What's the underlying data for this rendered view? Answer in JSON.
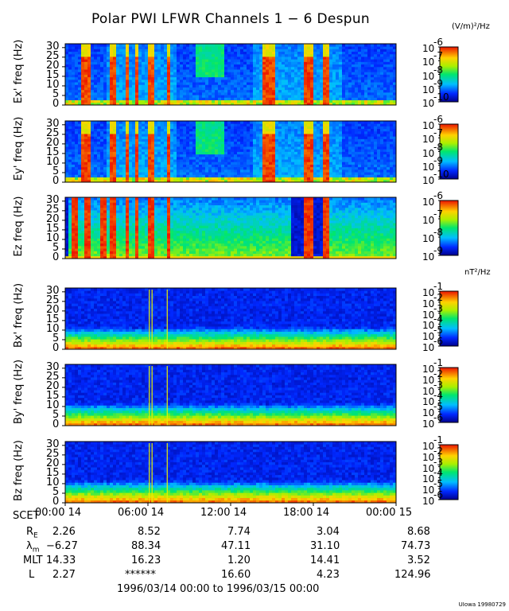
{
  "chart_data": {
    "type": "heatmap",
    "title": "Polar PWI LFWR Channels 1 − 6 Despun",
    "e_units": "(V/m)²/Hz",
    "b_units": "nT²/Hz",
    "time_range": "1996/03/14 00:00 to 1996/03/15 00:00",
    "credit": "UIowa 19980729",
    "y_ticks": [
      "0",
      "5",
      "10",
      "15",
      "20",
      "25",
      "30"
    ],
    "ylim": [
      0,
      32
    ],
    "x_ticks": [
      "00:00 14",
      "06:00 14",
      "12:00 14",
      "18:00 14",
      "00:00 15"
    ],
    "xlim_hours": [
      0,
      24
    ],
    "panels": [
      {
        "ylabel": "Ex' freq (Hz)",
        "kind": "E",
        "colorbar": {
          "top": "-6",
          "labels": [
            "-7",
            "-8",
            "-9",
            "-10"
          ]
        }
      },
      {
        "ylabel": "Ey' freq (Hz)",
        "kind": "E",
        "colorbar": {
          "top": "-6",
          "labels": [
            "-7",
            "-8",
            "-9",
            "-10"
          ]
        }
      },
      {
        "ylabel": "Ez freq (Hz)",
        "kind": "Ez",
        "colorbar": {
          "top": "-6",
          "labels": [
            "-7",
            "-8",
            "-9"
          ]
        }
      },
      {
        "ylabel": "Bx' freq (Hz)",
        "kind": "B",
        "colorbar": {
          "top": "-1",
          "labels": [
            "-2",
            "-3",
            "-4",
            "-5",
            "-6"
          ]
        }
      },
      {
        "ylabel": "By' freq (Hz)",
        "kind": "B",
        "colorbar": {
          "top": "-1",
          "labels": [
            "-2",
            "-3",
            "-4",
            "-5",
            "-6"
          ]
        }
      },
      {
        "ylabel": "Bz freq (Hz)",
        "kind": "B",
        "colorbar": {
          "top": "-1",
          "labels": [
            "-2",
            "-3",
            "-4",
            "-5",
            "-6"
          ]
        }
      }
    ],
    "ephemeris": {
      "labels": [
        "SCET",
        "R",
        "λ",
        "MLT",
        "L"
      ],
      "rows": [
        [
          "2.26",
          "8.52",
          "7.74",
          "3.04",
          "8.68"
        ],
        [
          "−6.27",
          "88.34",
          "47.11",
          "31.10",
          "74.73"
        ],
        [
          "14.33",
          "16.23",
          "1.20",
          "14.41",
          "3.52"
        ],
        [
          "2.27",
          "******",
          "16.60",
          "4.23",
          "124.96"
        ]
      ]
    },
    "bursts_E": [
      [
        1.2,
        1.8
      ],
      [
        3.3,
        3.6
      ],
      [
        4.3,
        4.6
      ],
      [
        5.1,
        5.4
      ],
      [
        6.1,
        6.4
      ],
      [
        7.3,
        7.5
      ],
      [
        14.4,
        15.2
      ],
      [
        17.2,
        17.9
      ],
      [
        18.6,
        19.1
      ]
    ],
    "bursts_Ez": [
      [
        0.4,
        0.9
      ],
      [
        1.3,
        1.9
      ],
      [
        2.6,
        3.0
      ],
      [
        3.3,
        3.6
      ],
      [
        4.3,
        4.6
      ],
      [
        5.1,
        5.4
      ],
      [
        6.1,
        6.4
      ],
      [
        7.3,
        7.5
      ],
      [
        17.2,
        17.9
      ],
      [
        18.6,
        19.1
      ]
    ],
    "lines_B": [
      6.1,
      6.3,
      7.4
    ]
  }
}
